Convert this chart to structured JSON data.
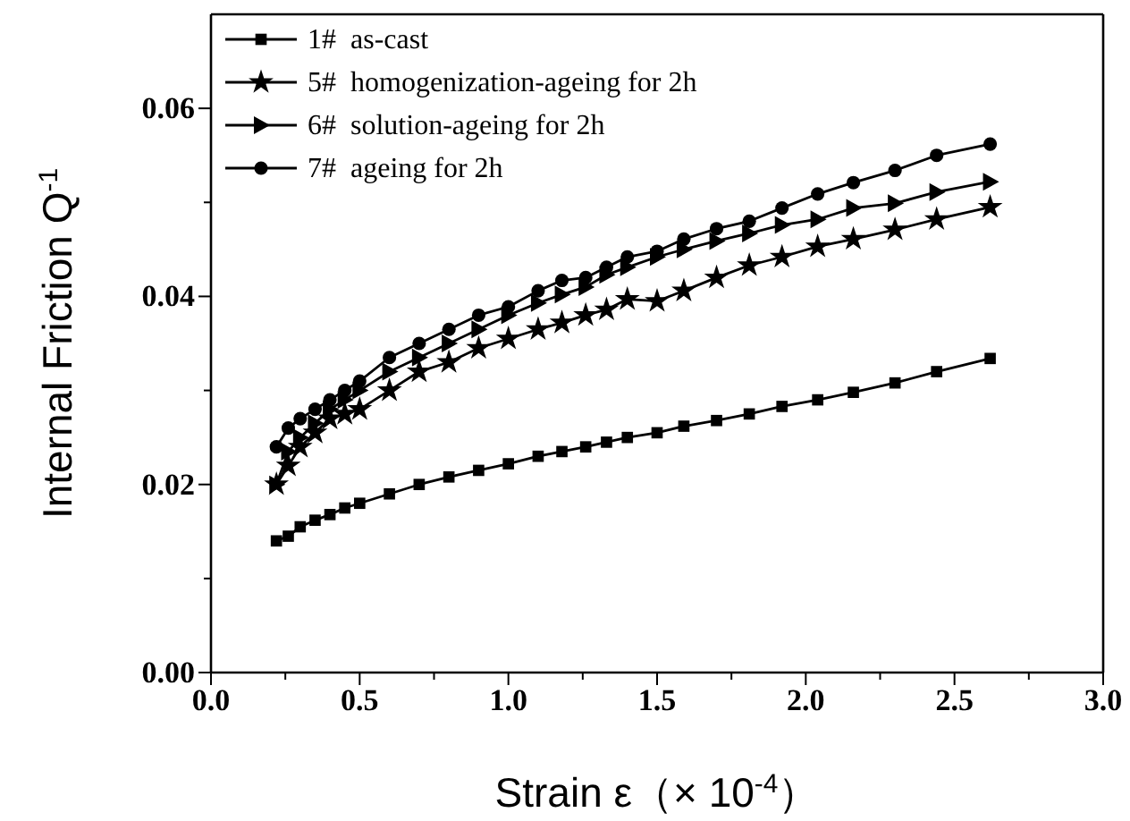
{
  "chart_data": {
    "type": "line",
    "xlabel": "Strain ε（× 10$^{-4}$）",
    "ylabel": "Internal Friction  Q$^{-1}$",
    "x": [
      0.22,
      0.26,
      0.3,
      0.35,
      0.4,
      0.45,
      0.5,
      0.6,
      0.7,
      0.8,
      0.9,
      1.0,
      1.1,
      1.18,
      1.26,
      1.33,
      1.4,
      1.5,
      1.59,
      1.7,
      1.81,
      1.92,
      2.04,
      2.16,
      2.3,
      2.44,
      2.62
    ],
    "series": [
      {
        "name": "1#  as-cast",
        "color": "#000000",
        "marker": "square",
        "values": [
          0.014,
          0.0145,
          0.0155,
          0.0162,
          0.0168,
          0.0175,
          0.018,
          0.019,
          0.02,
          0.0208,
          0.0215,
          0.0222,
          0.023,
          0.0235,
          0.024,
          0.0245,
          0.025,
          0.0255,
          0.0262,
          0.0268,
          0.0275,
          0.0283,
          0.029,
          0.0298,
          0.0308,
          0.032,
          0.0334
        ]
      },
      {
        "name": "5#  homogenization-ageing for 2h",
        "color": "#000000",
        "marker": "star",
        "values": [
          0.02,
          0.022,
          0.024,
          0.0255,
          0.027,
          0.0275,
          0.028,
          0.03,
          0.032,
          0.033,
          0.0345,
          0.0355,
          0.0365,
          0.0372,
          0.038,
          0.0386,
          0.0397,
          0.0395,
          0.0406,
          0.042,
          0.0433,
          0.0442,
          0.0453,
          0.0461,
          0.0471,
          0.0482,
          0.0495
        ]
      },
      {
        "name": "6#  solution-ageing for 2h",
        "color": "#000000",
        "marker": "triangle",
        "values": [
          0.02,
          0.0235,
          0.025,
          0.0265,
          0.028,
          0.029,
          0.03,
          0.032,
          0.0335,
          0.035,
          0.0365,
          0.038,
          0.0393,
          0.0402,
          0.041,
          0.0423,
          0.0431,
          0.0442,
          0.045,
          0.0459,
          0.0467,
          0.0476,
          0.0482,
          0.0494,
          0.0499,
          0.0511,
          0.0522
        ]
      },
      {
        "name": "7#  ageing for 2h",
        "color": "#000000",
        "marker": "circle",
        "values": [
          0.024,
          0.026,
          0.027,
          0.028,
          0.029,
          0.03,
          0.031,
          0.0335,
          0.035,
          0.0365,
          0.038,
          0.0389,
          0.0406,
          0.0417,
          0.042,
          0.0431,
          0.0442,
          0.0448,
          0.0461,
          0.0472,
          0.048,
          0.0494,
          0.0509,
          0.0521,
          0.0534,
          0.055,
          0.0562
        ]
      }
    ],
    "xlim": [
      0,
      3
    ],
    "ylim": [
      0,
      0.07
    ],
    "xticks": [
      {
        "value": 0,
        "label": "0.0"
      },
      {
        "value": 0.25,
        "label": null
      },
      {
        "value": 0.5,
        "label": "0.5"
      },
      {
        "value": 0.75,
        "label": null
      },
      {
        "value": 1,
        "label": "1.0"
      },
      {
        "value": 1.25,
        "label": null
      },
      {
        "value": 1.5,
        "label": "1.5"
      },
      {
        "value": 1.75,
        "label": null
      },
      {
        "value": 2,
        "label": "2.0"
      },
      {
        "value": 2.25,
        "label": null
      },
      {
        "value": 2.5,
        "label": "2.5"
      },
      {
        "value": 2.75,
        "label": null
      },
      {
        "value": 3,
        "label": "3.0"
      }
    ],
    "yticks": [
      {
        "value": 0,
        "label": "0.00"
      },
      {
        "value": 0.01,
        "label": null
      },
      {
        "value": 0.02,
        "label": "0.02"
      },
      {
        "value": 0.03,
        "label": null
      },
      {
        "value": 0.04,
        "label": "0.04"
      },
      {
        "value": 0.05,
        "label": null
      },
      {
        "value": 0.06,
        "label": "0.06"
      }
    ],
    "legend": "top left",
    "grid": false,
    "line_style": "solid"
  }
}
